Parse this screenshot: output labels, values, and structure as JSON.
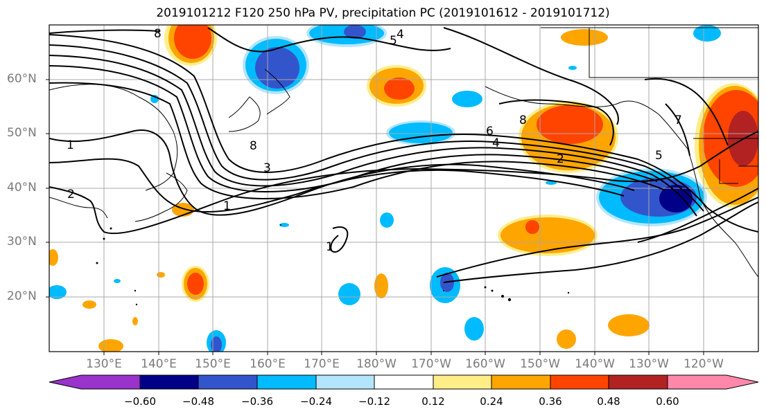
{
  "title": "2019101212 F120 250 hPa PV, precipitation PC (2019101612 - 2019101712)",
  "map": {
    "lat_labels": [
      "60°N",
      "50°N",
      "40°N",
      "30°N",
      "20°N"
    ],
    "lon_labels": [
      "130°E",
      "140°E",
      "150°E",
      "160°E",
      "170°E",
      "180°W",
      "170°W",
      "160°W",
      "150°W",
      "140°W",
      "130°W",
      "120°W"
    ],
    "contour_labels": [
      "1",
      "2",
      "8",
      "3",
      "1",
      "8",
      "5",
      "4",
      "6",
      "4",
      "8",
      "2",
      "7",
      "5",
      "1"
    ]
  },
  "colorbar": {
    "ticks": [
      "−0.60",
      "−0.48",
      "−0.36",
      "−0.24",
      "−0.12",
      "0.12",
      "0.24",
      "0.36",
      "0.48",
      "0.60"
    ],
    "colors": [
      "#9933cc",
      "#000088",
      "#3355cc",
      "#00bbff",
      "#b3e5ff",
      "#ffffff",
      "#ffee88",
      "#ffa500",
      "#ff4400",
      "#b22222",
      "#ff88aa"
    ]
  }
}
